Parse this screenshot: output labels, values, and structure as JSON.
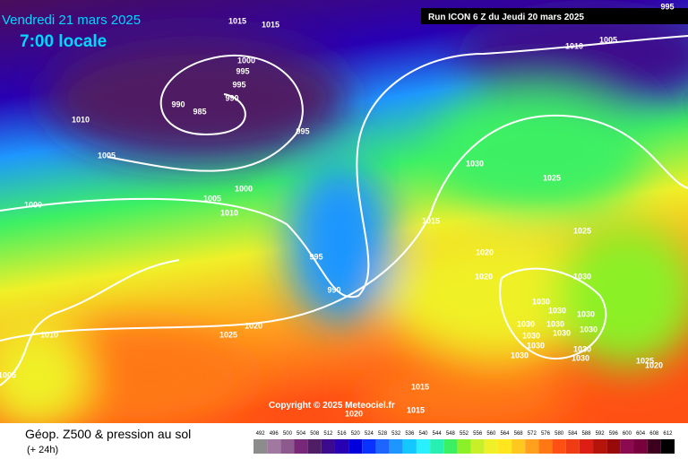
{
  "header": {
    "date": "Vendredi 21 mars 2025",
    "time": "7:00 locale",
    "run": "Run ICON 6 Z du Jeudi 20 mars 2025"
  },
  "isobar_labels": [
    "1015",
    "1015",
    "1000",
    "995",
    "995",
    "990",
    "990",
    "985",
    "1010",
    "995",
    "1005",
    "1000",
    "1005",
    "1010",
    "1000",
    "995",
    "990",
    "1020",
    "1025",
    "1010",
    "1005",
    "1010",
    "1005",
    "995",
    "1030",
    "1025",
    "1015",
    "1020",
    "1025",
    "1020",
    "1030",
    "1030",
    "1030",
    "1030",
    "1030",
    "1030",
    "1030",
    "1030",
    "1030",
    "1030",
    "1030",
    "1030",
    "1030",
    "1025",
    "1020",
    "1015",
    "1015",
    "1020"
  ],
  "copyright": "Copyright © 2025 Meteociel.fr",
  "legend": {
    "title": "Géop. Z500 & pression au sol",
    "subtitle": "(+ 24h)",
    "labels": [
      "492",
      "496",
      "500",
      "504",
      "508",
      "512",
      "516",
      "520",
      "524",
      "528",
      "532",
      "536",
      "540",
      "544",
      "548",
      "552",
      "556",
      "560",
      "564",
      "568",
      "572",
      "576",
      "580",
      "584",
      "588",
      "592",
      "596",
      "600",
      "604",
      "608",
      "612"
    ],
    "colors": [
      "#8c8c8c",
      "#a078a0",
      "#8c5a8c",
      "#782878",
      "#501e64",
      "#3c0a8c",
      "#2800b4",
      "#0000dc",
      "#0a32ff",
      "#1e64ff",
      "#1e96ff",
      "#14c8ff",
      "#28f0ff",
      "#28f0b4",
      "#3cf064",
      "#8cf028",
      "#c8f028",
      "#f0f028",
      "#ffe61e",
      "#ffc81e",
      "#ffa01e",
      "#ff7814",
      "#ff5014",
      "#f03c14",
      "#dc1e14",
      "#b4140a",
      "#960a0a",
      "#8c0a50",
      "#78003c",
      "#3c001e",
      "#000000"
    ]
  }
}
